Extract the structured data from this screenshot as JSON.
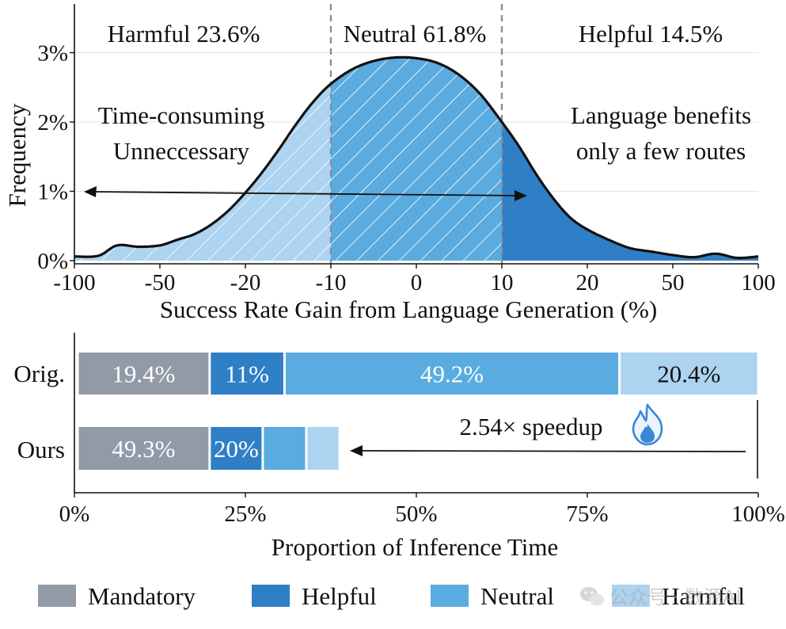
{
  "colors": {
    "mandatory": "#929aa7",
    "helpful": "#2f7fc6",
    "neutral": "#5aabdf",
    "harmful": "#acd3f0",
    "dashed": "#8a8f96",
    "grid": "#e5e5e5",
    "text": "#111111"
  },
  "chart_data": [
    {
      "type": "area",
      "title": "",
      "xlabel": "Success Rate Gain from Language Generation (%)",
      "ylabel": "Frequency",
      "x_ticks": [
        "-100",
        "-50",
        "-20",
        "-10",
        "0",
        "10",
        "20",
        "50",
        "100"
      ],
      "y_ticks": [
        "0%",
        "1%",
        "2%",
        "3%"
      ],
      "ylim": [
        0,
        3.5
      ],
      "grid": "horizontal",
      "thresholds": [
        -10,
        10
      ],
      "regions": [
        {
          "name": "Harmful",
          "label": "Harmful 23.6%",
          "share": 23.6,
          "range": [
            -100,
            -10
          ],
          "pattern": "hatched"
        },
        {
          "name": "Neutral",
          "label": "Neutral 61.8%",
          "share": 61.8,
          "range": [
            -10,
            10
          ],
          "pattern": "hatched"
        },
        {
          "name": "Helpful",
          "label": "Helpful 14.5%",
          "share": 14.5,
          "range": [
            10,
            100
          ],
          "pattern": "solid"
        }
      ],
      "annotations": {
        "left_line1": "Time-consuming",
        "left_line2": "Unneccessary",
        "right_line1": "Language benefits",
        "right_line2": "only a few routes"
      },
      "curve": {
        "x_tick_index": [
          0,
          0.28,
          0.5,
          0.75,
          1,
          1.2,
          1.4,
          1.6,
          1.8,
          2,
          2.2,
          2.4,
          2.6,
          2.8,
          3,
          3.25,
          3.5,
          3.75,
          4,
          4.25,
          4.5,
          4.75,
          5,
          5.2,
          5.4,
          5.6,
          5.8,
          6,
          6.25,
          6.5,
          6.75,
          7,
          7.25,
          7.5,
          7.75,
          8
        ],
        "y": [
          0.06,
          0.07,
          0.22,
          0.2,
          0.22,
          0.3,
          0.38,
          0.52,
          0.72,
          0.98,
          1.28,
          1.62,
          1.98,
          2.3,
          2.55,
          2.76,
          2.88,
          2.93,
          2.92,
          2.85,
          2.68,
          2.4,
          2.0,
          1.65,
          1.25,
          0.9,
          0.62,
          0.45,
          0.3,
          0.18,
          0.13,
          0.08,
          0.05,
          0.1,
          0.04,
          0.06
        ]
      }
    },
    {
      "type": "bar",
      "orientation": "horizontal",
      "stacked": true,
      "xlabel": "Proportion of Inference Time",
      "x_ticks": [
        "0%",
        "25%",
        "50%",
        "75%",
        "100%"
      ],
      "xlim": [
        0,
        100
      ],
      "categories": [
        "Orig.",
        "Ours"
      ],
      "segments": [
        {
          "category": "Orig.",
          "series": "Mandatory",
          "value": 19.4,
          "label": "19.4%"
        },
        {
          "category": "Orig.",
          "series": "Helpful",
          "value": 11,
          "label": "11%"
        },
        {
          "category": "Orig.",
          "series": "Neutral",
          "value": 49.2,
          "label": "49.2%"
        },
        {
          "category": "Orig.",
          "series": "Harmful",
          "value": 20.4,
          "label": "20.4%"
        },
        {
          "category": "Ours",
          "series": "Mandatory",
          "value": 19.4,
          "label": "49.3%"
        },
        {
          "category": "Ours",
          "series": "Helpful",
          "value": 7.8,
          "label": "20%"
        },
        {
          "category": "Ours",
          "series": "Neutral",
          "value": 6.4,
          "label": ""
        },
        {
          "category": "Ours",
          "series": "Harmful",
          "value": 4.9,
          "label": ""
        }
      ],
      "annotation": {
        "text": "2.54× speedup",
        "icon": "fire-icon",
        "arrow_from": 98,
        "arrow_to": 40
      },
      "legend": {
        "placement": "bottom",
        "items": [
          {
            "name": "Mandatory",
            "color": "#929aa7"
          },
          {
            "name": "Helpful",
            "color": "#2f7fc6"
          },
          {
            "name": "Neutral",
            "color": "#5aabdf"
          },
          {
            "name": "Harmful",
            "color": "#acd3f0"
          }
        ]
      }
    }
  ],
  "watermark": {
    "text": "公众号 · 数源AI",
    "icon": "wechat-icon"
  }
}
